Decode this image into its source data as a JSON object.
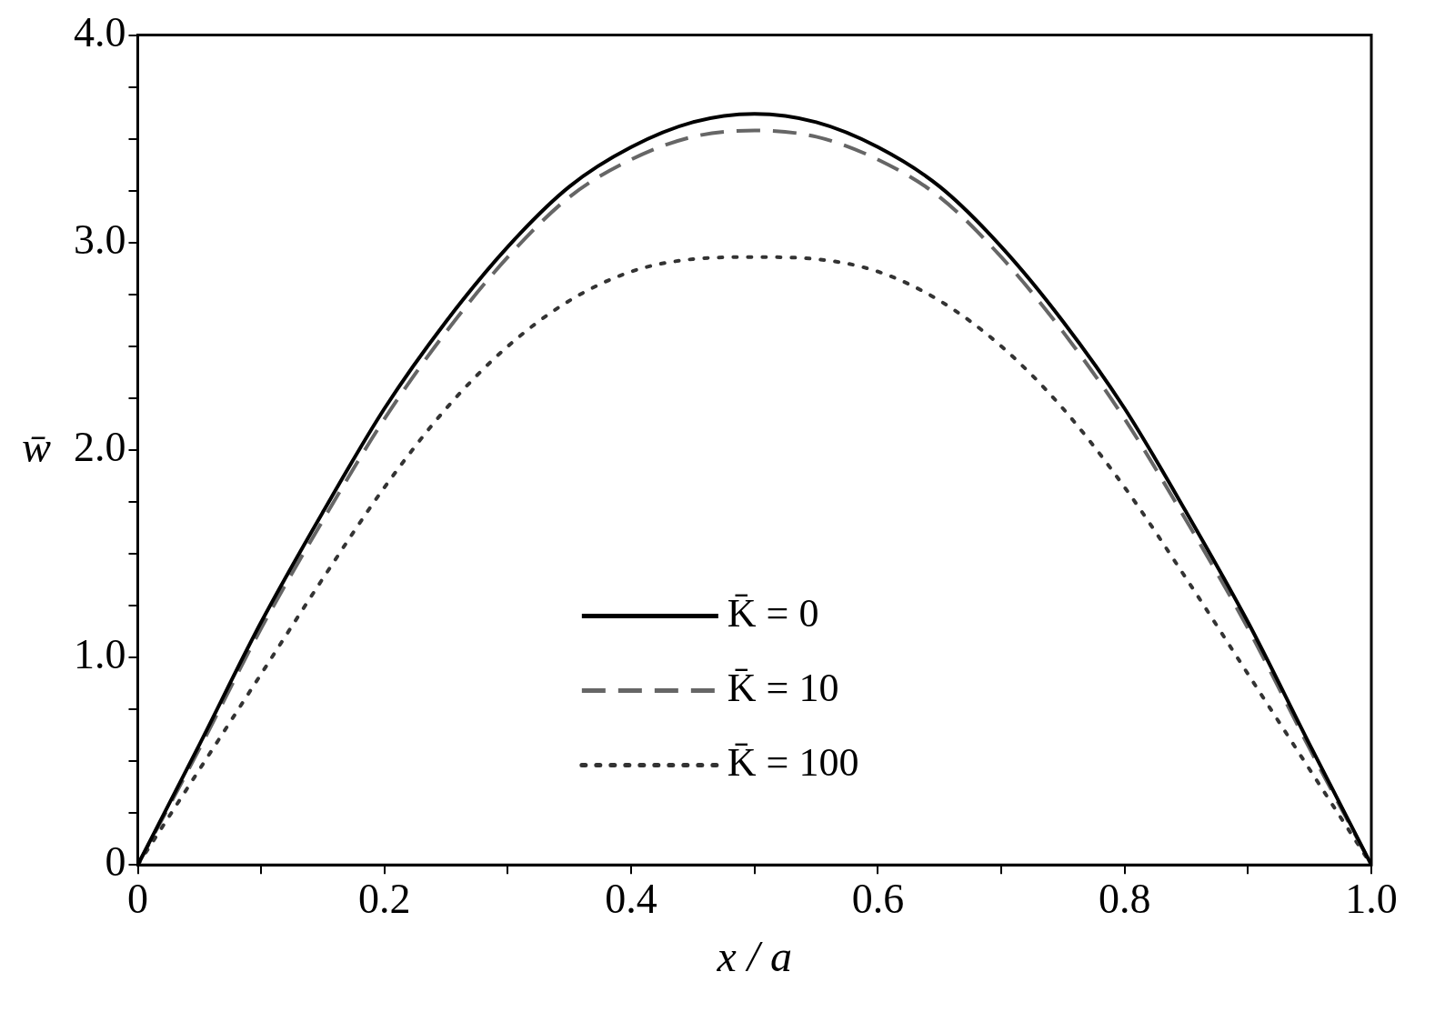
{
  "chart_data": {
    "type": "line",
    "xlabel": "x / a",
    "ylabel": "w̄",
    "x": [
      0,
      0.05,
      0.1,
      0.15,
      0.2,
      0.25,
      0.3,
      0.35,
      0.4,
      0.45,
      0.5,
      0.55,
      0.6,
      0.65,
      0.7,
      0.75,
      0.8,
      0.85,
      0.9,
      0.95,
      1.0
    ],
    "series": [
      {
        "name": "K̄ = 0",
        "color": "#000000",
        "line_style": "solid",
        "values": [
          0,
          0.58,
          1.17,
          1.7,
          2.2,
          2.62,
          2.98,
          3.27,
          3.46,
          3.58,
          3.62,
          3.58,
          3.46,
          3.27,
          2.98,
          2.62,
          2.2,
          1.7,
          1.17,
          0.58,
          0
        ]
      },
      {
        "name": "K̄ = 10",
        "color": "#666666",
        "line_style": "dashed",
        "values": [
          0,
          0.56,
          1.14,
          1.66,
          2.15,
          2.57,
          2.93,
          3.22,
          3.4,
          3.51,
          3.54,
          3.51,
          3.4,
          3.22,
          2.93,
          2.57,
          2.15,
          1.66,
          1.14,
          0.56,
          0
        ]
      },
      {
        "name": "K̄ = 100",
        "color": "#333333",
        "line_style": "dotted",
        "values": [
          0,
          0.46,
          0.92,
          1.38,
          1.82,
          2.2,
          2.5,
          2.72,
          2.86,
          2.92,
          2.93,
          2.92,
          2.86,
          2.72,
          2.5,
          2.2,
          1.82,
          1.38,
          0.92,
          0.46,
          0
        ]
      }
    ],
    "xlim": [
      0,
      1.0
    ],
    "ylim": [
      0,
      4.0
    ],
    "xticks": [
      0,
      {
        "value": 0.1,
        "label": null
      },
      {
        "value": 0.2,
        "label": "0.2"
      },
      {
        "value": 0.3,
        "label": null
      },
      {
        "value": 0.4,
        "label": "0.4"
      },
      {
        "value": 0.5,
        "label": null
      },
      {
        "value": 0.6,
        "label": "0.6"
      },
      {
        "value": 0.7,
        "label": null
      },
      {
        "value": 0.8,
        "label": "0.8"
      },
      {
        "value": 0.9,
        "label": null
      },
      {
        "value": 1.0,
        "label": "1.0"
      }
    ],
    "yticks": [
      0,
      {
        "value": 0.25,
        "label": null
      },
      {
        "value": 0.5,
        "label": null
      },
      {
        "value": 0.75,
        "label": null
      },
      {
        "value": 1.0,
        "label": "1.0"
      },
      {
        "value": 1.25,
        "label": null
      },
      {
        "value": 1.5,
        "label": null
      },
      {
        "value": 1.75,
        "label": null
      },
      {
        "value": 2.0,
        "label": "2.0"
      },
      {
        "value": 2.25,
        "label": null
      },
      {
        "value": 2.5,
        "label": null
      },
      {
        "value": 2.75,
        "label": null
      },
      {
        "value": 3.0,
        "label": "3.0"
      },
      {
        "value": 3.25,
        "label": null
      },
      {
        "value": 3.5,
        "label": null
      },
      {
        "value": 3.75,
        "label": null
      },
      {
        "value": 4.0,
        "label": "4.0"
      }
    ],
    "grid": false,
    "legend": "bottom",
    "marker": "none"
  }
}
